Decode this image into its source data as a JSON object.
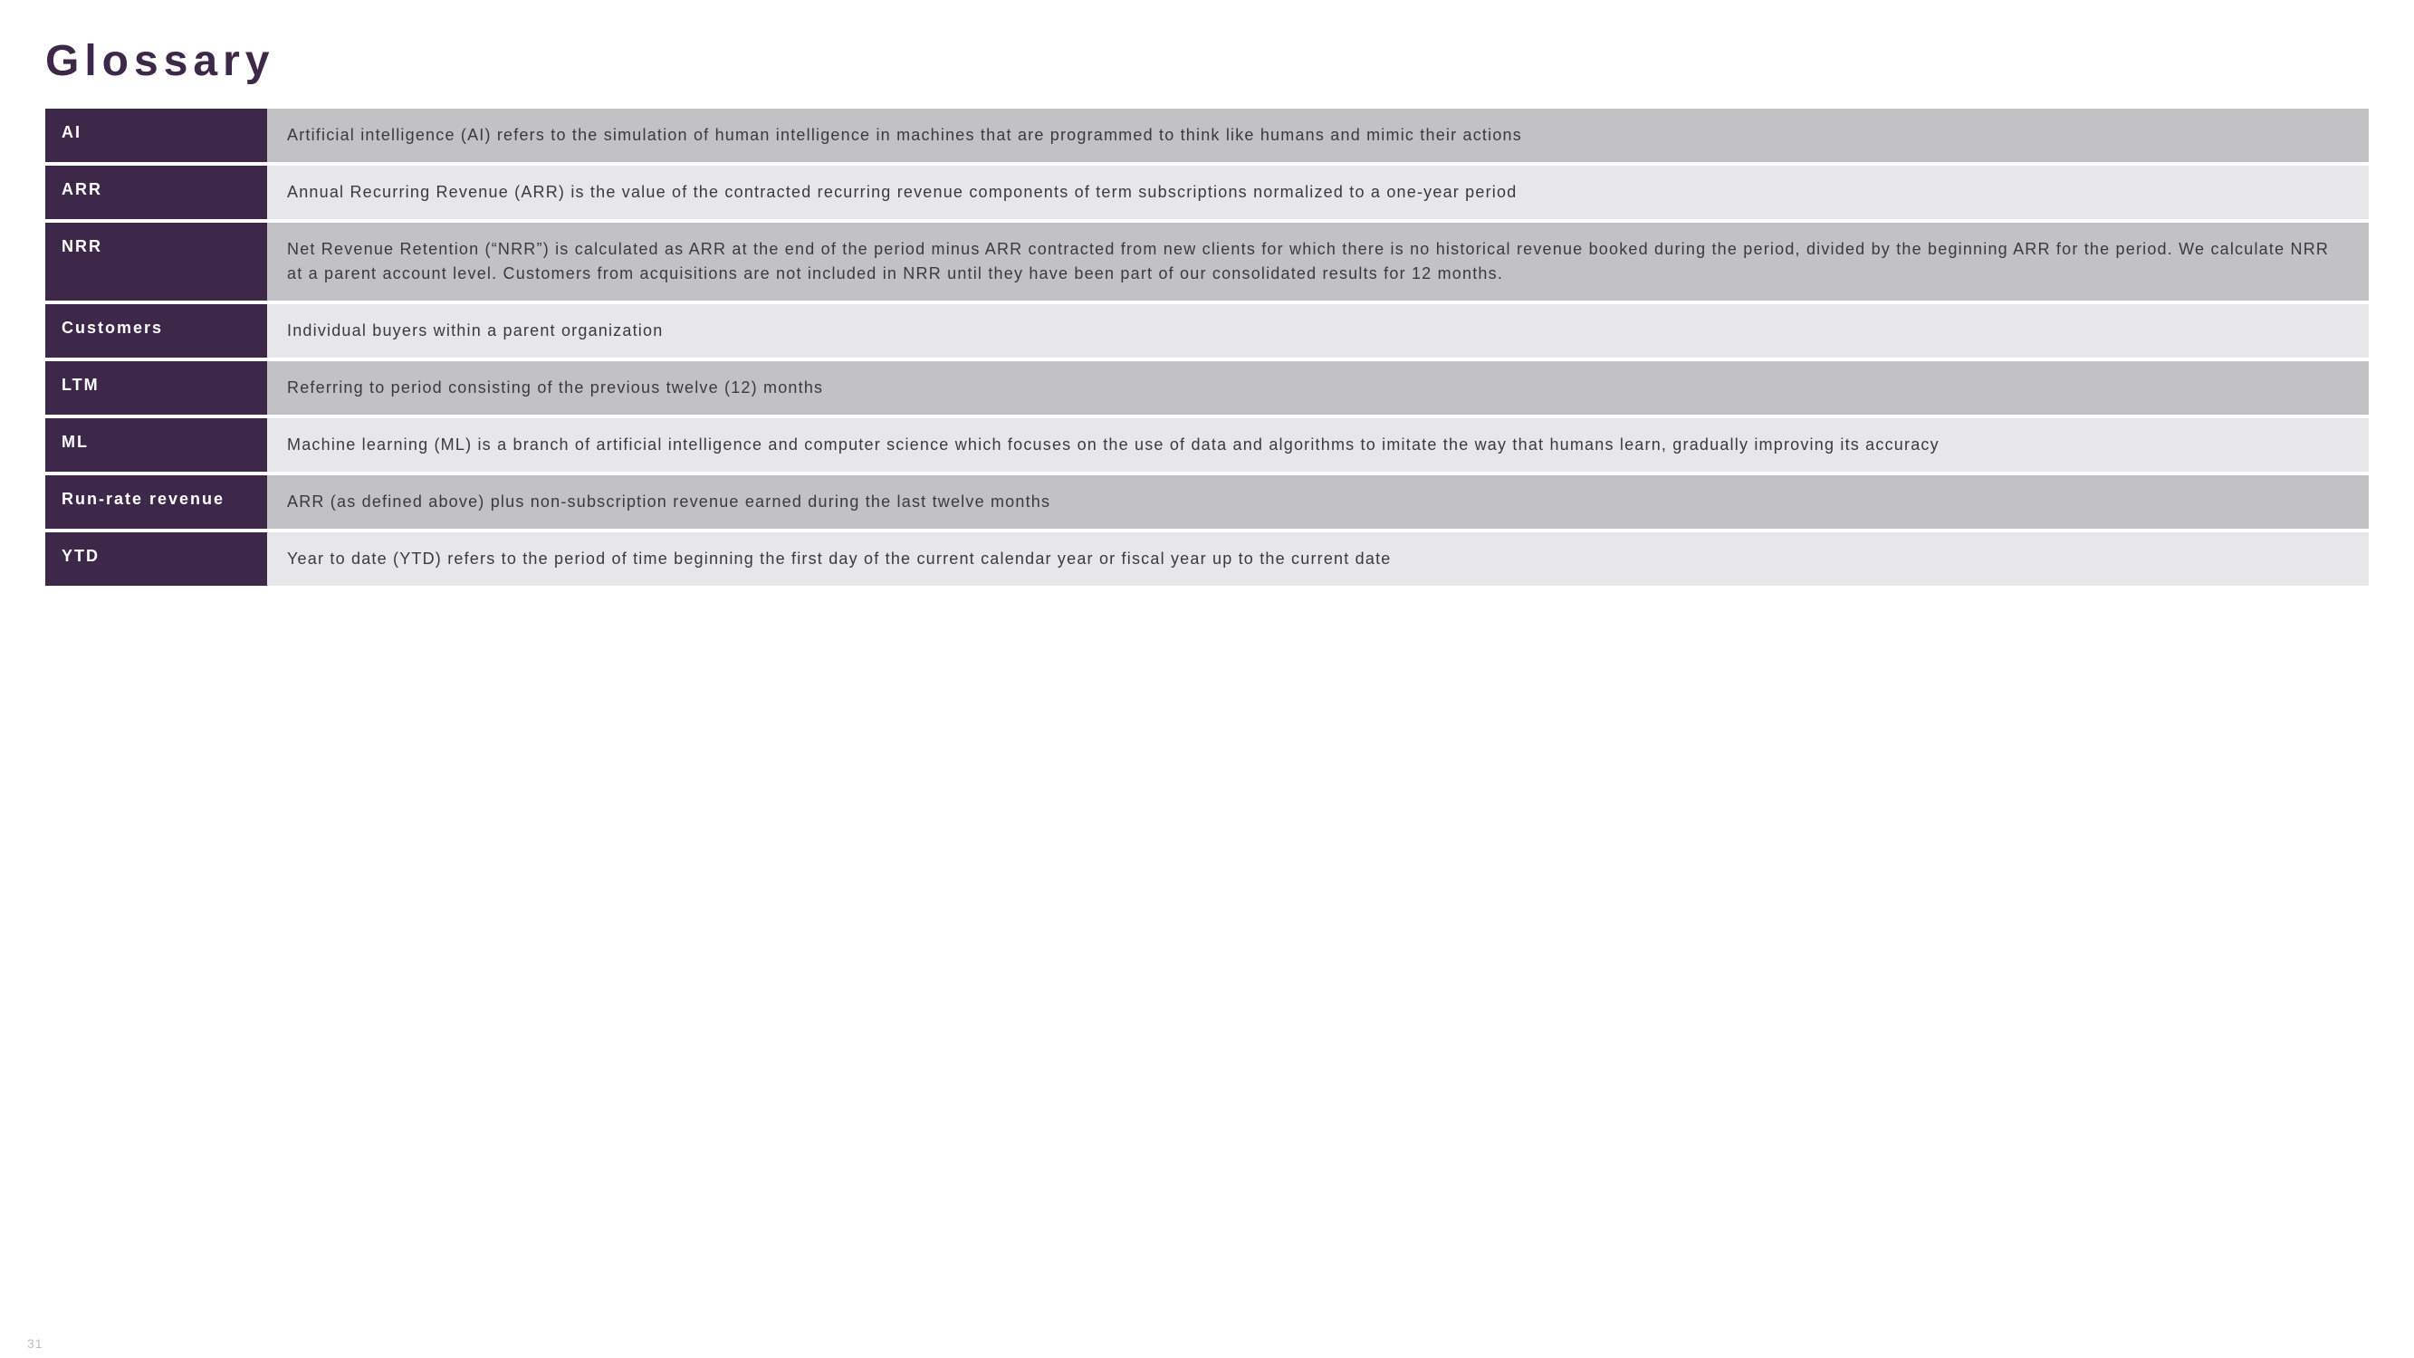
{
  "title": "Glossary",
  "page_number": "31",
  "colors": {
    "title": "#3e2849",
    "term_bg": "#3e2849",
    "term_text": "#ffffff",
    "def_bg_odd": "#c2c2c4",
    "def_bg_even": "#e7e7e9",
    "def_text": "#3a3a3a",
    "background": "#ffffff"
  },
  "rows": [
    {
      "term": "AI",
      "definition": "Artificial intelligence (AI) refers to the simulation of human intelligence in machines that are programmed to think like humans and mimic their actions"
    },
    {
      "term": "ARR",
      "definition": "Annual Recurring Revenue (ARR) is the value of the contracted recurring revenue components of term subscriptions normalized to a one-year period"
    },
    {
      "term": "NRR",
      "definition": "Net Revenue Retention (“NRR”) is calculated as ARR at the end of the period minus ARR contracted from new clients for which there is no historical revenue booked during the period, divided by the beginning ARR for the period. We calculate NRR at a parent account level. Customers from acquisitions are not included in NRR until they have been part of our consolidated results for 12 months."
    },
    {
      "term": "Customers",
      "definition": "Individual buyers within a parent organization"
    },
    {
      "term": "LTM",
      "definition": "Referring to period consisting of the previous twelve (12) months"
    },
    {
      "term": "ML",
      "definition": "Machine learning (ML) is a branch of artificial intelligence and computer science which focuses on the use of data and algorithms to imitate the way that humans learn, gradually improving its accuracy"
    },
    {
      "term": "Run-rate revenue",
      "definition": "ARR (as defined above) plus non-subscription revenue earned during the last twelve months"
    },
    {
      "term": "YTD",
      "definition": "Year to date (YTD) refers to the period of time beginning the first day of the current calendar year or fiscal year up to the current date"
    }
  ]
}
